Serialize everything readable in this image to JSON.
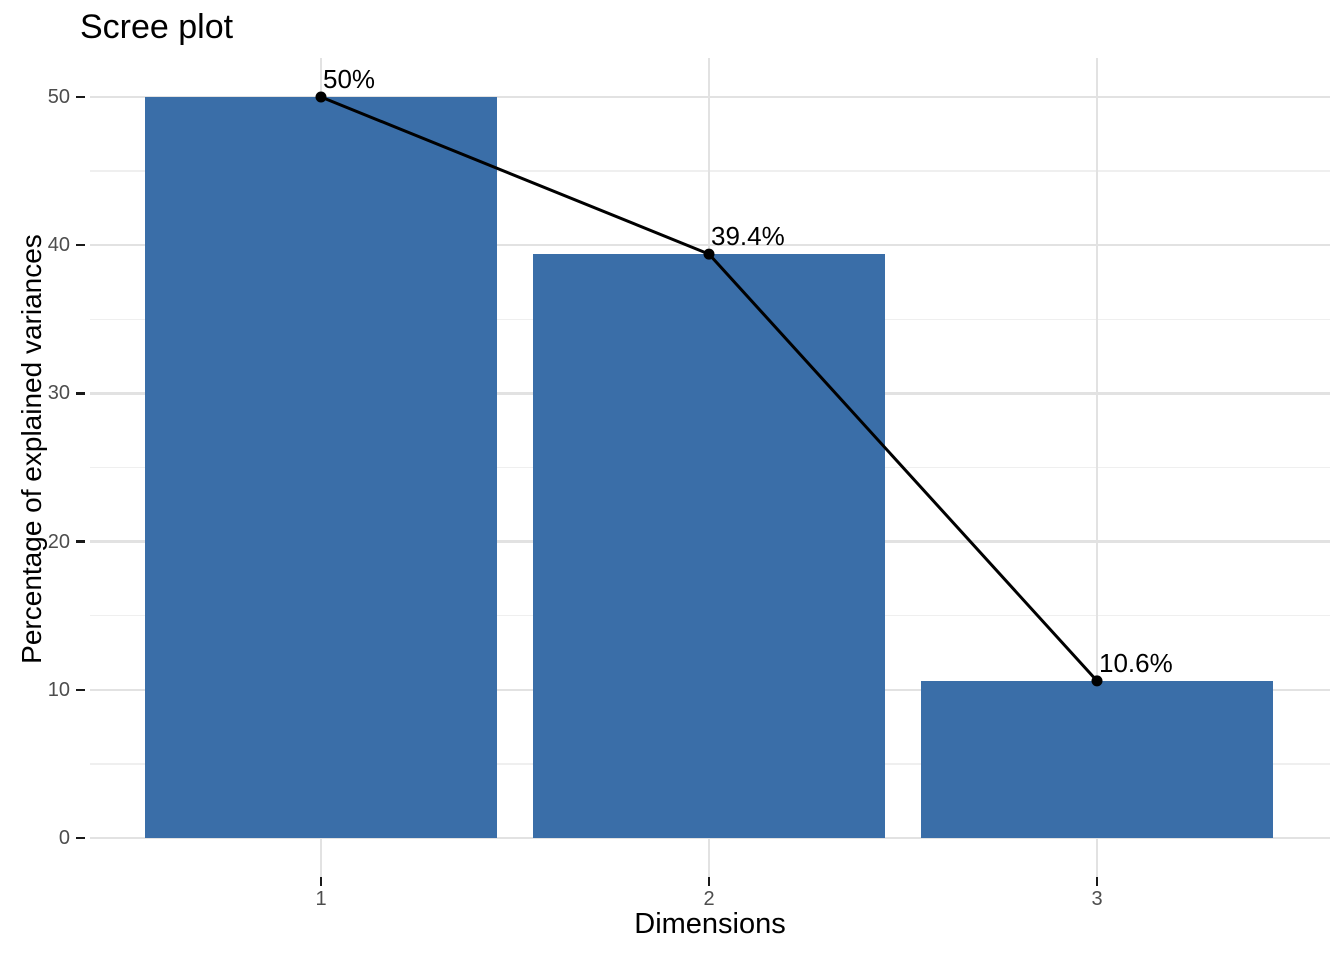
{
  "chart_data": {
    "type": "bar",
    "title": "Scree plot",
    "xlabel": "Dimensions",
    "ylabel": "Percentage of explained variances",
    "categories": [
      "1",
      "2",
      "3"
    ],
    "values": [
      50,
      39.4,
      10.6
    ],
    "point_labels": [
      "50%",
      "39.4%",
      "10.6%"
    ],
    "overlay": {
      "type": "line",
      "marker": "point",
      "connects": "bar tops"
    },
    "ylim": [
      0,
      52.6
    ],
    "yticks_major": [
      0,
      10,
      20,
      30,
      40,
      50
    ],
    "yticks_minor": [
      5,
      15,
      25,
      35,
      45
    ],
    "grid": "horizontal major+minor full-width, vertical major at category centers",
    "legend": "none",
    "colors": {
      "bar_fill": "#3A6EA8",
      "line": "#000000",
      "point": "#000000",
      "grid_major": "#E2E2E2",
      "grid_minor": "#EFEFEF",
      "axis_tick": "#1A1A1A",
      "tick_label_text": "#4D4D4D",
      "title_text": "#000000",
      "axis_title_text": "#000000",
      "background": "#FFFFFF"
    }
  }
}
